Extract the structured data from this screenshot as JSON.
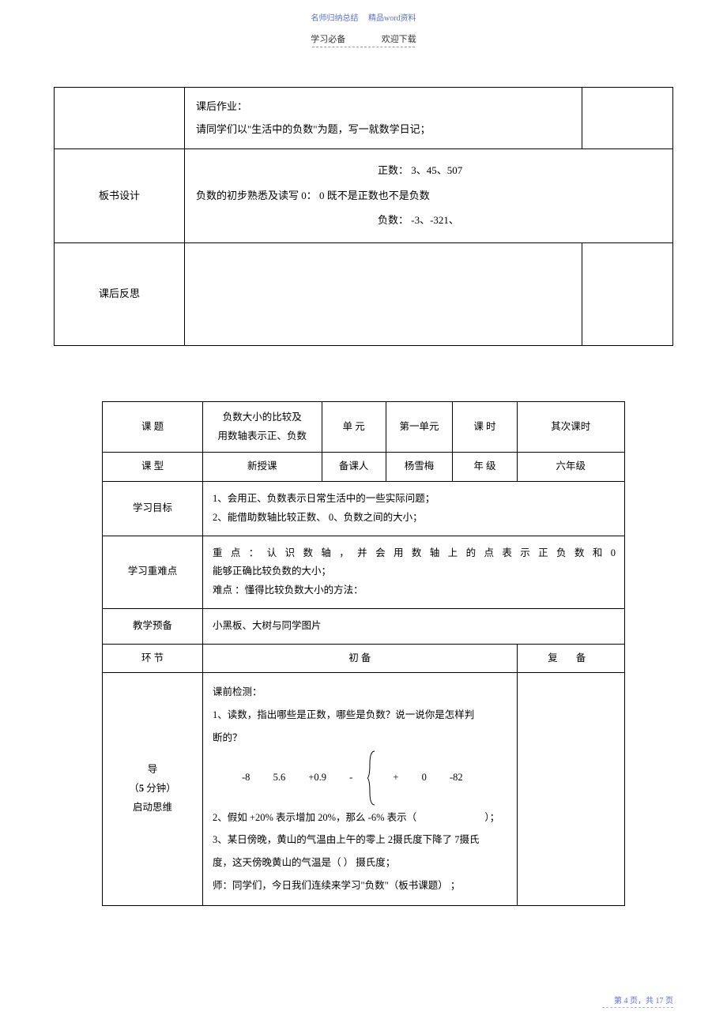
{
  "header": {
    "top_left": "名师归纳总结",
    "top_right": "精品word资料",
    "sub_left": "学习必备",
    "sub_right": "欢迎下载"
  },
  "table1": {
    "r1": {
      "homework_title": "课后作业：",
      "homework_body": "请同学们以\"生活中的负数\"为题，写一就数学日记；"
    },
    "r2": {
      "label": "板书设计",
      "positive": "正数：  3、45、507",
      "middle": "负数的初步熟悉及读写   0： 0 既不是正数也不是负数",
      "negative": "负数：  -3、-321、"
    },
    "r3": {
      "label": "课后反思"
    }
  },
  "table2": {
    "row1": {
      "c1": "课   题",
      "c2a": "负数大小的比较及",
      "c2b": "用数轴表示正、负数",
      "c3": "单   元",
      "c4": "第一单元",
      "c5": "课   时",
      "c6": "其次课时"
    },
    "row2": {
      "c1": "课   型",
      "c2": "新授课",
      "c3": "备课人",
      "c4": "杨雪梅",
      "c5": "年   级",
      "c6": "六年级"
    },
    "row3": {
      "label": "学习目标",
      "line1": "1、会用正、负数表示日常生活中的一些实际问题；",
      "line2": "2、能借助数轴比较正数、   0、负数之间的大小；"
    },
    "row4": {
      "label": "学习重难点",
      "line1": "重 点 ： 认 识 数 轴 ， 并 会 用 数 轴 上 的 点 表 示 正 负 数 和   0",
      "line2": "能够正确比较负数的大小；",
      "line3": "难点 ：懂得比较负数大小的方法："
    },
    "row5": {
      "label": "教学预备",
      "body": "小黑板、大树与同学图片"
    },
    "row6": {
      "c1": "环   节",
      "c2": "初   备",
      "c3": "复   备"
    },
    "row7": {
      "label_l1": "导",
      "label_l2": "（5 分钟）",
      "label_l3": "启动思维",
      "l1": "课前检测：",
      "l2": "1、读数，指出哪些是正数，哪些是负数？说一说你是怎样判",
      "l3": "断的？",
      "nums": [
        "-8",
        "5.6",
        "+0.9",
        "-",
        "+",
        "0",
        "-82"
      ],
      "l5a": "2、假如 +20% 表示增加  20%",
      "l5b": "，那么 -6% 表示（",
      "l5c": "）；",
      "l6": "3、某日傍晚，黄山的气温由上午的零上    2摄氏度下降了  7摄氏",
      "l7": "度，这天傍晚黄山的气温是（          ）  摄氏度；",
      "l8": "师：同学们，今日我们连续来学习\"负数\"（板书课题）     ；"
    }
  },
  "footer": {
    "text": "第 4 页，共 17 页"
  },
  "colors": {
    "accent": "#5b6fcf",
    "text": "#000000",
    "border": "#000000",
    "bg": "#ffffff"
  }
}
